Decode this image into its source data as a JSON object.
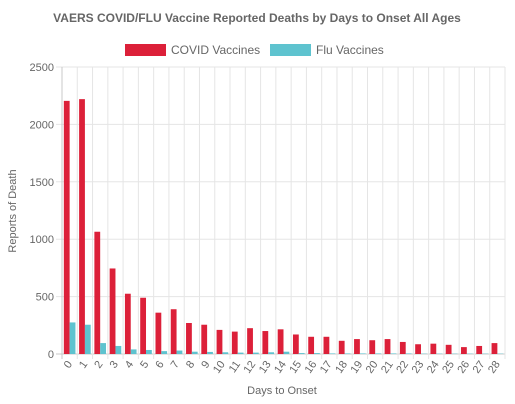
{
  "chart_data": {
    "type": "bar",
    "title": "VAERS COVID/FLU Vaccine Reported Deaths by Days to Onset All Ages",
    "xlabel": "Days to Onset",
    "ylabel": "Reports of Death",
    "ylim": [
      0,
      2500
    ],
    "yticks": [
      "0",
      "500",
      "1000",
      "1500",
      "2000",
      "2500"
    ],
    "grid": true,
    "legend_position": "top",
    "categories": [
      "0",
      "1",
      "2",
      "3",
      "4",
      "5",
      "6",
      "7",
      "8",
      "9",
      "10",
      "11",
      "12",
      "13",
      "14",
      "15",
      "16",
      "17",
      "18",
      "19",
      "20",
      "21",
      "22",
      "23",
      "24",
      "25",
      "26",
      "27",
      "28"
    ],
    "series": [
      {
        "name": "COVID Vaccines",
        "color": "#dc2039",
        "values": [
          2205,
          2220,
          1065,
          745,
          525,
          490,
          360,
          390,
          270,
          255,
          210,
          195,
          225,
          200,
          215,
          170,
          150,
          150,
          115,
          130,
          120,
          130,
          105,
          85,
          90,
          80,
          60,
          70,
          95
        ]
      },
      {
        "name": "Flu Vaccines",
        "color": "#5ec3cf",
        "values": [
          275,
          255,
          95,
          70,
          40,
          35,
          25,
          30,
          20,
          18,
          15,
          12,
          12,
          15,
          20,
          8,
          8,
          5,
          5,
          5,
          5,
          5,
          5,
          3,
          3,
          3,
          3,
          3,
          3
        ]
      }
    ]
  }
}
